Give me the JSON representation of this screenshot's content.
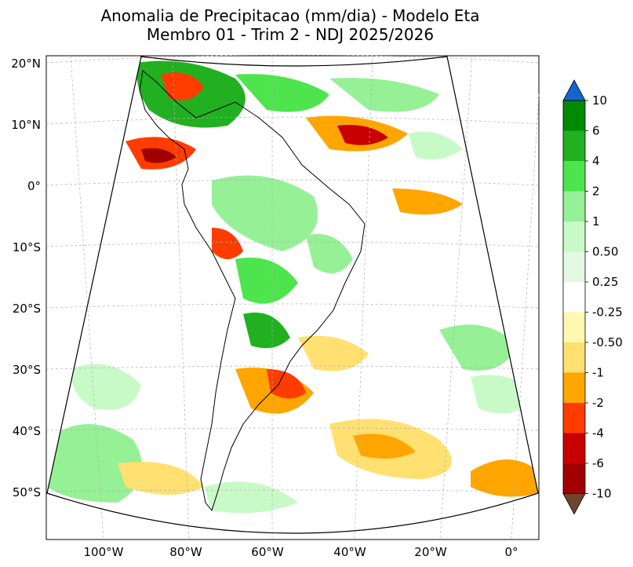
{
  "title": {
    "line1": "Anomalia de Precipitacao (mm/dia) - Modelo Eta",
    "line2": "Membro 01 - Trim 2 - NDJ 2025/2026"
  },
  "map": {
    "lat_labels": [
      "20°N",
      "10°N",
      "0°",
      "10°S",
      "20°S",
      "30°S",
      "40°S",
      "50°S"
    ],
    "lon_labels": [
      "100°W",
      "80°W",
      "60°W",
      "40°W",
      "20°W",
      "0°"
    ],
    "lat_values": [
      20,
      10,
      0,
      -10,
      -20,
      -30,
      -40,
      -50
    ],
    "lon_values": [
      -100,
      -80,
      -60,
      -40,
      -20,
      0
    ],
    "colors": {
      "ocean_bg": "#ffffff",
      "coast": "#000000",
      "grid": "#b0b0b0"
    }
  },
  "colorbar": {
    "labels": [
      "10",
      "6",
      "4",
      "2",
      "1",
      "0.50",
      "0.25",
      "-0.25",
      "-0.50",
      "-1",
      "-2",
      "-4",
      "-6",
      "-10"
    ],
    "max_extend_color": "#1464d2",
    "min_extend_color": "#6e4630",
    "bins": [
      {
        "from": 6,
        "to": 10,
        "color": "#008a00"
      },
      {
        "from": 4,
        "to": 6,
        "color": "#20b020"
      },
      {
        "from": 2,
        "to": 4,
        "color": "#4ee44e"
      },
      {
        "from": 1,
        "to": 2,
        "color": "#96f096"
      },
      {
        "from": 0.5,
        "to": 1,
        "color": "#c8fac8"
      },
      {
        "from": 0.25,
        "to": 0.5,
        "color": "#e2fae2"
      },
      {
        "from": -0.25,
        "to": 0.25,
        "color": "#ffffff"
      },
      {
        "from": -0.5,
        "to": -0.25,
        "color": "#fff8b0"
      },
      {
        "from": -1,
        "to": -0.5,
        "color": "#ffe070"
      },
      {
        "from": -2,
        "to": -1,
        "color": "#ffa500"
      },
      {
        "from": -4,
        "to": -2,
        "color": "#ff3c00"
      },
      {
        "from": -6,
        "to": -4,
        "color": "#c80000"
      },
      {
        "from": -10,
        "to": -6,
        "color": "#a00000"
      }
    ]
  }
}
